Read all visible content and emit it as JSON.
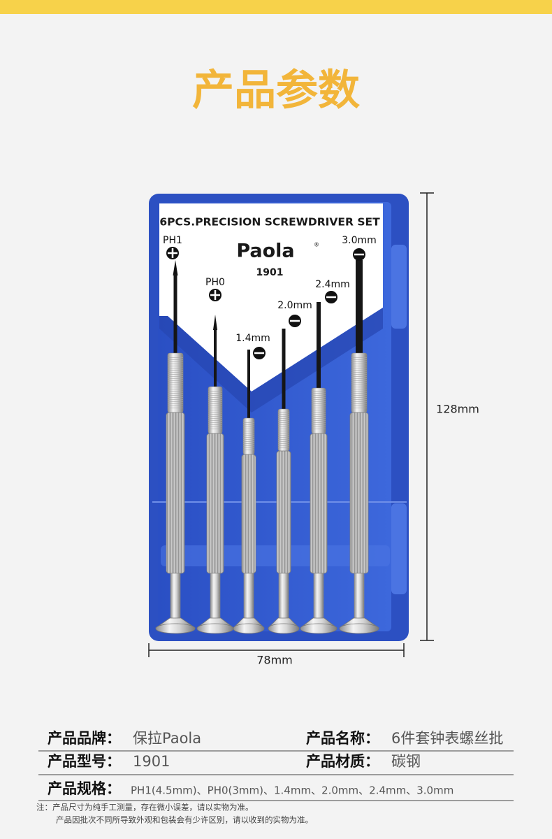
{
  "header": {
    "title": "产品参数"
  },
  "product_image": {
    "box_title": "6PCS.PRECISION SCREWDRIVER SET",
    "brand": "Paola",
    "brand_mark": "®",
    "model": "1901",
    "tips": [
      "PH1",
      "PH0",
      "1.4mm",
      "2.0mm",
      "2.4mm",
      "3.0mm"
    ],
    "height_label": "128mm",
    "width_label": "78mm"
  },
  "specs": {
    "rows": [
      [
        {
          "label": "产品品牌：",
          "value": "保拉Paola"
        },
        {
          "label": "产品名称：",
          "value": "6件套钟表螺丝批"
        }
      ],
      [
        {
          "label": "产品型号：",
          "value": "1901"
        },
        {
          "label": "产品材质：",
          "value": "碳钢"
        }
      ],
      [
        {
          "label": "产品规格：",
          "value": "PH1(4.5mm)、PH0(3mm)、1.4mm、2.0mm、2.4mm、3.0mm"
        }
      ]
    ]
  },
  "notes": [
    "注：产品尺寸为纯手工测量，存在微小误差，请以实物为准。",
    "产品因批次不同所导致外观和包装会有少许区别，请以收到的实物为准。"
  ]
}
